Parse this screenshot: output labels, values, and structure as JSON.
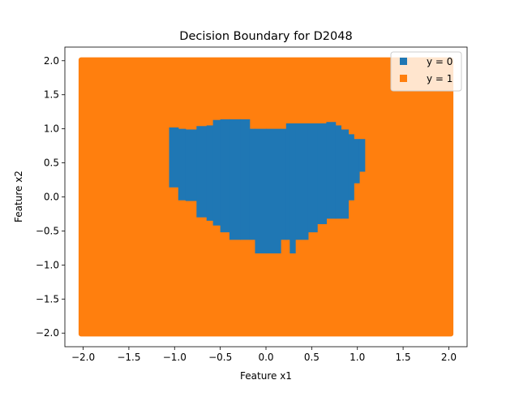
{
  "chart_data": {
    "type": "scatter",
    "title": "Decision Boundary for D2048",
    "xlabel": "Feature x1",
    "ylabel": "Feature x2",
    "xlim": [
      -2.2,
      2.2
    ],
    "ylim": [
      -2.2,
      2.2
    ],
    "x_ticks": [
      -2.0,
      -1.5,
      -1.0,
      -0.5,
      0.0,
      0.5,
      1.0,
      1.5,
      2.0
    ],
    "x_tick_labels": [
      "−2.0",
      "−1.5",
      "−1.0",
      "−0.5",
      "0.0",
      "0.5",
      "1.0",
      "1.5",
      "2.0"
    ],
    "y_ticks": [
      -2.0,
      -1.5,
      -1.0,
      -0.5,
      0.0,
      0.5,
      1.0,
      1.5,
      2.0
    ],
    "y_tick_labels": [
      "−2.0",
      "−1.5",
      "−1.0",
      "−0.5",
      "0.0",
      "0.5",
      "1.0",
      "1.5",
      "2.0"
    ],
    "grid": false,
    "legend_position": "top-right",
    "series": [
      {
        "name": "y = 0",
        "color": "#1f77b4",
        "marker": "square",
        "region_columns": [
          {
            "x": [
              -1.06,
              -0.96
            ],
            "y": [
              0.14,
              1.02
            ]
          },
          {
            "x": [
              -0.96,
              -0.88
            ],
            "y": [
              -0.05,
              1.0
            ]
          },
          {
            "x": [
              -0.88,
              -0.76
            ],
            "y": [
              -0.06,
              0.99
            ]
          },
          {
            "x": [
              -0.76,
              -0.65
            ],
            "y": [
              -0.3,
              1.04
            ]
          },
          {
            "x": [
              -0.65,
              -0.58
            ],
            "y": [
              -0.35,
              1.05
            ]
          },
          {
            "x": [
              -0.58,
              -0.5
            ],
            "y": [
              -0.42,
              1.13
            ]
          },
          {
            "x": [
              -0.5,
              -0.4
            ],
            "y": [
              -0.52,
              1.14
            ]
          },
          {
            "x": [
              -0.4,
              -0.28
            ],
            "y": [
              -0.63,
              1.14
            ]
          },
          {
            "x": [
              -0.28,
              -0.18
            ],
            "y": [
              -0.63,
              1.14
            ]
          },
          {
            "x": [
              -0.18,
              -0.12
            ],
            "y": [
              -0.63,
              1.0
            ]
          },
          {
            "x": [
              -0.12,
              0.0
            ],
            "y": [
              -0.83,
              1.0
            ]
          },
          {
            "x": [
              0.0,
              0.16
            ],
            "y": [
              -0.83,
              1.0
            ]
          },
          {
            "x": [
              0.16,
              0.22
            ],
            "y": [
              -0.63,
              1.0
            ]
          },
          {
            "x": [
              0.22,
              0.26
            ],
            "y": [
              -0.63,
              1.08
            ]
          },
          {
            "x": [
              0.26,
              0.32
            ],
            "y": [
              -0.83,
              1.08
            ]
          },
          {
            "x": [
              0.32,
              0.46
            ],
            "y": [
              -0.63,
              1.08
            ]
          },
          {
            "x": [
              0.46,
              0.56
            ],
            "y": [
              -0.52,
              1.08
            ]
          },
          {
            "x": [
              0.56,
              0.66
            ],
            "y": [
              -0.4,
              1.08
            ]
          },
          {
            "x": [
              0.66,
              0.76
            ],
            "y": [
              -0.32,
              1.1
            ]
          },
          {
            "x": [
              0.76,
              0.82
            ],
            "y": [
              -0.32,
              1.05
            ]
          },
          {
            "x": [
              0.82,
              0.9
            ],
            "y": [
              -0.32,
              0.99
            ]
          },
          {
            "x": [
              0.9,
              0.96
            ],
            "y": [
              -0.05,
              0.92
            ]
          },
          {
            "x": [
              0.96,
              1.02
            ],
            "y": [
              0.2,
              0.85
            ]
          },
          {
            "x": [
              1.02,
              1.08
            ],
            "y": [
              0.37,
              0.85
            ]
          }
        ]
      },
      {
        "name": "y = 1",
        "color": "#ff7f0e",
        "marker": "square",
        "region": {
          "x": [
            -2.05,
            2.05
          ],
          "y": [
            -2.05,
            2.05
          ]
        }
      }
    ]
  }
}
